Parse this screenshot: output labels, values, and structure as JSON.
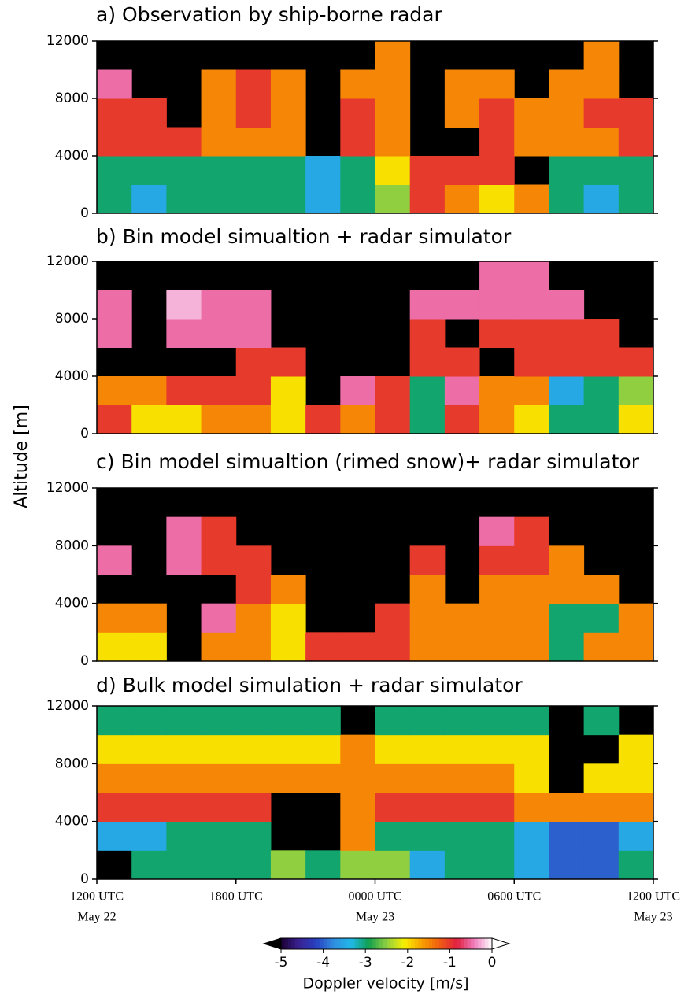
{
  "chart_data": [
    {
      "type": "heatmap",
      "title": "a) Observation by ship-borne radar",
      "xlim": [
        0,
        24
      ],
      "ylim": [
        0,
        12000
      ],
      "yticks": [
        0,
        4000,
        8000,
        12000
      ],
      "xbins": [
        0,
        1.5,
        3,
        4.5,
        6,
        7.5,
        9,
        10.5,
        12,
        13.5,
        15,
        16.5,
        18,
        19.5,
        21,
        22.5,
        24
      ],
      "ybins": [
        0,
        2000,
        4000,
        6000,
        8000,
        10000,
        12000
      ],
      "values": [
        [
          -3,
          -3.5,
          -3,
          -3,
          -3,
          -3,
          -3.5,
          -3,
          -2.5,
          -1,
          -1.5,
          -2,
          -1.5,
          -3,
          -3.5,
          -3
        ],
        [
          -3,
          -3,
          -3,
          -3,
          -3,
          -3,
          -3.5,
          -3,
          -2,
          -1,
          -1,
          -1,
          null,
          -3,
          -3,
          -3
        ],
        [
          -1,
          -1,
          -1,
          -1.5,
          -1.5,
          -1.5,
          null,
          -1,
          -1.5,
          null,
          null,
          -1,
          -1.5,
          -1.5,
          -1.5,
          -1
        ],
        [
          -1,
          -1,
          null,
          -1.5,
          -1,
          -1.5,
          null,
          -1,
          -1.5,
          null,
          -1.5,
          -1,
          -1.5,
          -1.5,
          -1,
          -1
        ],
        [
          -0.5,
          null,
          null,
          -1.5,
          -1,
          -1.5,
          null,
          -1.5,
          -1.5,
          null,
          -1.5,
          -1.5,
          null,
          -1.5,
          -1.5,
          null
        ],
        [
          null,
          null,
          null,
          null,
          null,
          null,
          null,
          null,
          -1.5,
          null,
          null,
          null,
          null,
          null,
          -1.5,
          null
        ]
      ]
    },
    {
      "type": "heatmap",
      "title": "b) Bin model simualtion + radar simulator",
      "xlim": [
        0,
        24
      ],
      "ylim": [
        0,
        12000
      ],
      "yticks": [
        0,
        4000,
        8000,
        12000
      ],
      "xbins": [
        0,
        1.5,
        3,
        4.5,
        6,
        7.5,
        9,
        10.5,
        12,
        13.5,
        15,
        16.5,
        18,
        19.5,
        21,
        22.5,
        24
      ],
      "ybins": [
        0,
        2000,
        4000,
        6000,
        8000,
        10000,
        12000
      ],
      "values": [
        [
          -1,
          -2,
          -2,
          -1.5,
          -1.5,
          -2,
          -1,
          -1.5,
          -1,
          -3,
          -1,
          -1.5,
          -2,
          -3,
          -3,
          -2
        ],
        [
          -1.5,
          -1.5,
          -1,
          -1,
          -1,
          -2,
          null,
          -0.5,
          -1,
          -3,
          -0.5,
          -1.5,
          -1.5,
          -3.5,
          -3,
          -2.5
        ],
        [
          null,
          null,
          null,
          null,
          -1,
          -1,
          null,
          null,
          null,
          -1,
          -1,
          null,
          -1,
          -1,
          -1,
          -1
        ],
        [
          -0.5,
          null,
          -0.5,
          -0.5,
          -0.5,
          null,
          null,
          null,
          null,
          -1,
          null,
          -1,
          -1,
          -1,
          -1,
          null
        ],
        [
          -0.5,
          null,
          -0.25,
          -0.5,
          -0.5,
          null,
          null,
          null,
          null,
          -0.5,
          -0.5,
          -0.5,
          -0.5,
          -0.5,
          null,
          null
        ],
        [
          null,
          null,
          null,
          null,
          null,
          null,
          null,
          null,
          null,
          null,
          null,
          -0.5,
          -0.5,
          null,
          null,
          null
        ]
      ]
    },
    {
      "type": "heatmap",
      "title": "c) Bin model simualtion (rimed snow)+ radar simulator",
      "xlim": [
        0,
        24
      ],
      "ylim": [
        0,
        12000
      ],
      "yticks": [
        0,
        4000,
        8000,
        12000
      ],
      "xbins": [
        0,
        1.5,
        3,
        4.5,
        6,
        7.5,
        9,
        10.5,
        12,
        13.5,
        15,
        16.5,
        18,
        19.5,
        21,
        22.5,
        24
      ],
      "ybins": [
        0,
        2000,
        4000,
        6000,
        8000,
        10000,
        12000
      ],
      "values": [
        [
          -2,
          -2,
          null,
          -1.5,
          -1.5,
          -2,
          -1,
          -1,
          -1,
          -1.5,
          -1.5,
          -1.5,
          -1.5,
          -3,
          -1.5,
          -1.5
        ],
        [
          -1.5,
          -1.5,
          null,
          -0.5,
          -1.5,
          -2,
          null,
          null,
          -1,
          -1.5,
          -1.5,
          -1.5,
          -1.5,
          -3,
          -3,
          -1.5
        ],
        [
          null,
          null,
          null,
          null,
          -1,
          -1.5,
          null,
          null,
          null,
          -1.5,
          null,
          -1.5,
          -1.5,
          -1.5,
          -1.5,
          null
        ],
        [
          -0.5,
          null,
          -0.5,
          -1,
          -1,
          null,
          null,
          null,
          null,
          -1,
          null,
          -1,
          -1,
          -1.5,
          null,
          null
        ],
        [
          null,
          null,
          -0.5,
          -1,
          null,
          null,
          null,
          null,
          null,
          null,
          null,
          -0.5,
          -1,
          null,
          null,
          null
        ],
        [
          null,
          null,
          null,
          null,
          null,
          null,
          null,
          null,
          null,
          null,
          null,
          null,
          null,
          null,
          null,
          null
        ]
      ]
    },
    {
      "type": "heatmap",
      "title": "d) Bulk model simulation + radar simulator",
      "xlim": [
        0,
        24
      ],
      "ylim": [
        0,
        12000
      ],
      "yticks": [
        0,
        4000,
        8000,
        12000
      ],
      "xticks": [
        {
          "value": 0,
          "label": "1200 UTC"
        },
        {
          "value": 6,
          "label": "1800 UTC"
        },
        {
          "value": 12,
          "label": "0000 UTC"
        },
        {
          "value": 18,
          "label": "0600 UTC"
        },
        {
          "value": 24,
          "label": "1200 UTC"
        }
      ],
      "xdate_ticks": [
        {
          "value": 0,
          "label": "May 22"
        },
        {
          "value": 12,
          "label": "May 23"
        },
        {
          "value": 24,
          "label": "May 23"
        }
      ],
      "xbins": [
        0,
        1.5,
        3,
        4.5,
        6,
        7.5,
        9,
        10.5,
        12,
        13.5,
        15,
        16.5,
        18,
        19.5,
        21,
        22.5,
        24
      ],
      "ybins": [
        0,
        2000,
        4000,
        6000,
        8000,
        10000,
        12000
      ],
      "values": [
        [
          null,
          -3,
          -3,
          -3,
          -3,
          -2.5,
          -3,
          -2.5,
          -2.5,
          -3.5,
          -3,
          -3,
          -3.5,
          -4,
          -4,
          -3
        ],
        [
          -3.5,
          -3.5,
          -3,
          -3,
          -3,
          null,
          null,
          -1.5,
          -3,
          -3,
          -3,
          -3,
          -3.5,
          -4,
          -4,
          -3.5
        ],
        [
          -1,
          -1,
          -1,
          -1,
          -1,
          null,
          null,
          -1.5,
          -1,
          -1,
          -1,
          -1,
          -1.5,
          -1.5,
          -1.5,
          -1.5
        ],
        [
          -1.5,
          -1.5,
          -1.5,
          -1.5,
          -1.5,
          -1.5,
          -1.5,
          -1.5,
          -1.5,
          -1.5,
          -1.5,
          -1.5,
          -2,
          null,
          -2,
          -2
        ],
        [
          -2,
          -2,
          -2,
          -2,
          -2,
          -2,
          -2,
          -1.5,
          -2,
          -2,
          -2,
          -2,
          -2,
          null,
          null,
          -2
        ],
        [
          -3,
          -3,
          -3,
          -3,
          -3,
          -3,
          -3,
          null,
          -3,
          -3,
          -3,
          -3,
          -3,
          null,
          -3,
          null
        ]
      ]
    }
  ],
  "ylabel": "Altitude [m]",
  "colorbar": {
    "label": "Doppler velocity [m/s]",
    "lim": [
      -5,
      0
    ],
    "ticks": [
      -5,
      -4,
      -3,
      -2,
      -1,
      0
    ],
    "colors": [
      "#1a0030",
      "#3a2090",
      "#2840c0",
      "#3090e0",
      "#20b8e8",
      "#10a050",
      "#90d040",
      "#f8f000",
      "#f8a000",
      "#f06010",
      "#e02040",
      "#f080c0",
      "#ffffff"
    ],
    "under_color": "#000000",
    "over_color": "#ffffff"
  }
}
